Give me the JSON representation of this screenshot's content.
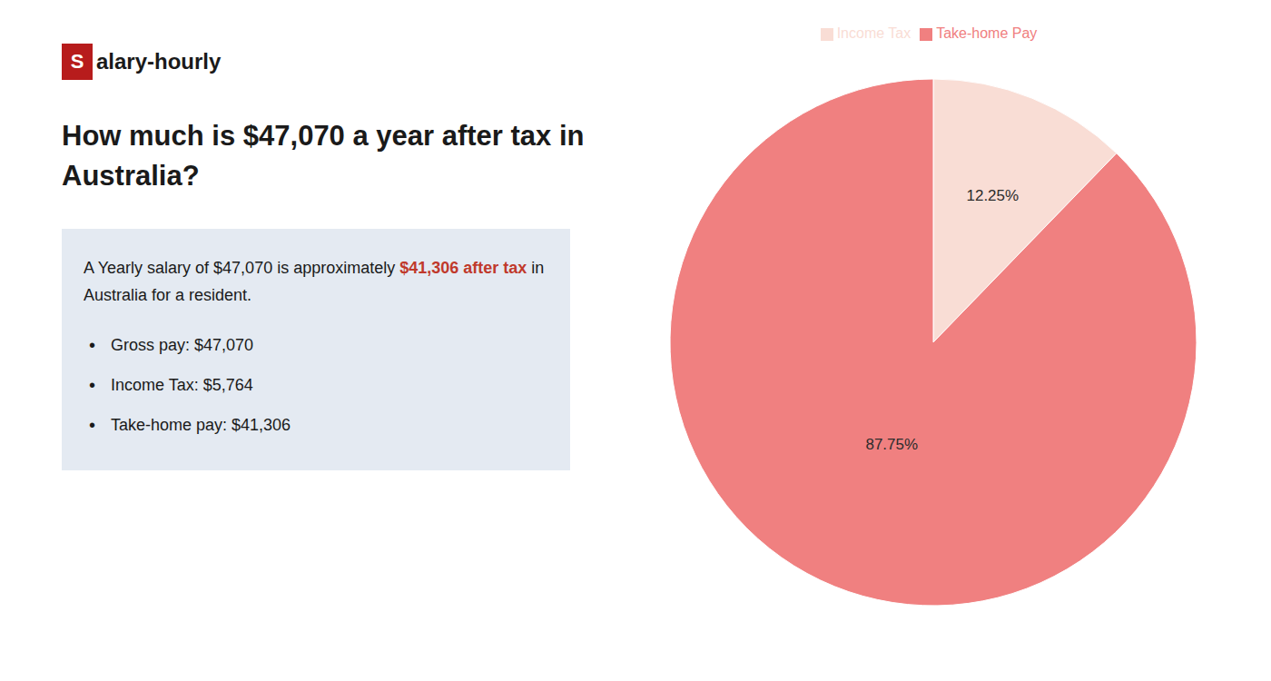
{
  "chart_data": {
    "type": "pie",
    "title": [
      "How much is $47,070 a year after tax in",
      "Australia?"
    ],
    "categories": [
      "Income Tax",
      "Take-home Pay"
    ],
    "values": [
      12.25,
      87.75
    ],
    "value_labels": [
      "12.25%",
      "87.75%"
    ],
    "colors": [
      "#f9ddd5",
      "#f08080"
    ],
    "data_labels": true,
    "legend": "top",
    "annotations": {
      "logo_mark": "S",
      "logo_mark_color": "#b71c1c",
      "logo_text": "alary-hourly",
      "info_line1": [
        {
          "text": "A Yearly salary of $47,070 is approximately "
        },
        {
          "text": "$41,306 after tax",
          "color": "#c0392b"
        },
        {
          "text": " in"
        }
      ],
      "info_line2": "Australia for a resident.",
      "bullet": "•",
      "bullets": [
        "Gross pay: $47,070",
        "Income Tax: $5,764",
        "Take-home pay: $41,306"
      ]
    }
  }
}
